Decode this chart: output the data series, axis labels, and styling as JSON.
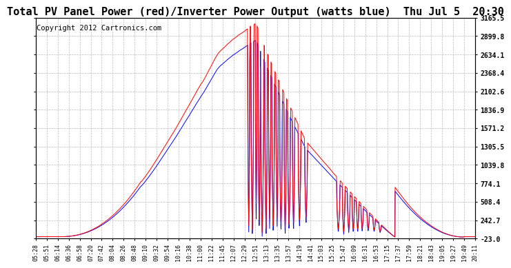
{
  "title": "Total PV Panel Power (red)/Inverter Power Output (watts blue)  Thu Jul 5  20:30",
  "copyright": "Copyright 2012 Cartronics.com",
  "ylabel_right": [
    "3165.5",
    "2899.8",
    "2634.1",
    "2368.4",
    "2102.6",
    "1836.9",
    "1571.2",
    "1305.5",
    "1039.8",
    "774.1",
    "508.4",
    "242.7",
    "-23.0"
  ],
  "ymin": -23.0,
  "ymax": 3165.5,
  "background_color": "#ffffff",
  "grid_color": "#bbbbbb",
  "pv_color": "red",
  "inv_color": "blue",
  "title_fontsize": 11,
  "copyright_fontsize": 7.5
}
